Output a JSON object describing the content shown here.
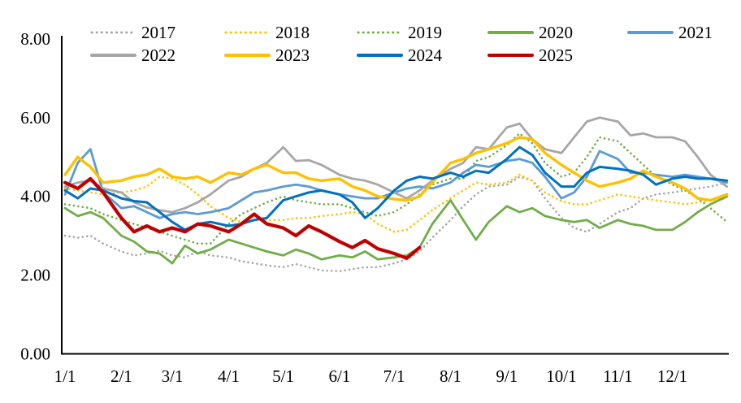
{
  "chart_data": {
    "type": "line",
    "title": "",
    "xlabel": "",
    "ylabel": "",
    "ylim": [
      0,
      8
    ],
    "grid": false,
    "legend_position": "top",
    "x_unit": "day_of_year",
    "x_axis_range_days": [
      0,
      364
    ],
    "y_ticks": [
      "0.00",
      "2.00",
      "4.00",
      "6.00",
      "8.00"
    ],
    "x_ticks": [
      {
        "label": "1/1",
        "day": 0
      },
      {
        "label": "2/1",
        "day": 31
      },
      {
        "label": "3/1",
        "day": 59
      },
      {
        "label": "4/1",
        "day": 90
      },
      {
        "label": "5/1",
        "day": 120
      },
      {
        "label": "6/1",
        "day": 151
      },
      {
        "label": "7/1",
        "day": 181
      },
      {
        "label": "8/1",
        "day": 212
      },
      {
        "label": "9/1",
        "day": 243
      },
      {
        "label": "10/1",
        "day": 273
      },
      {
        "label": "11/1",
        "day": 304
      },
      {
        "label": "12/1",
        "day": 334
      }
    ],
    "x_grid_days": [
      0,
      7,
      14,
      21,
      31,
      38,
      45,
      52,
      59,
      66,
      73,
      80,
      90,
      97,
      104,
      111,
      120,
      127,
      134,
      141,
      151,
      158,
      165,
      172,
      181,
      188,
      195,
      202,
      212,
      219,
      226,
      233,
      243,
      250,
      257,
      264,
      273,
      280,
      287,
      294,
      304,
      311,
      318,
      325,
      334,
      341,
      348,
      355,
      364
    ],
    "legend_rows": [
      [
        "2017",
        "2018",
        "2019",
        "2020",
        "2021"
      ],
      [
        "2022",
        "2023",
        "2024",
        "2025"
      ]
    ],
    "series": [
      {
        "name": "2017",
        "color": "#a6a6a6",
        "style": "dotted",
        "width": 2.6,
        "values": [
          3.0,
          2.95,
          3.0,
          2.8,
          2.6,
          2.5,
          2.55,
          2.62,
          2.5,
          2.45,
          2.6,
          2.5,
          2.45,
          2.35,
          2.3,
          2.25,
          2.2,
          2.28,
          2.2,
          2.12,
          2.1,
          2.15,
          2.2,
          2.2,
          2.3,
          2.4,
          2.6,
          2.95,
          3.4,
          3.75,
          4.05,
          4.25,
          4.3,
          4.5,
          4.4,
          3.95,
          3.45,
          3.2,
          3.1,
          3.3,
          3.6,
          3.7,
          3.95,
          4.05,
          4.1,
          4.15,
          4.2,
          4.25,
          4.35
        ]
      },
      {
        "name": "2018",
        "color": "#ffc000",
        "style": "dotted",
        "width": 2.6,
        "values": [
          4.2,
          4.15,
          4.1,
          4.05,
          4.1,
          4.15,
          4.25,
          4.5,
          4.45,
          4.3,
          4.05,
          3.75,
          3.45,
          3.35,
          3.4,
          3.4,
          3.4,
          3.45,
          3.45,
          3.5,
          3.55,
          3.6,
          3.55,
          3.3,
          3.1,
          3.15,
          3.4,
          3.65,
          3.95,
          4.15,
          4.35,
          4.3,
          4.35,
          4.55,
          4.4,
          4.1,
          3.88,
          3.8,
          3.8,
          3.9,
          4.05,
          4.0,
          3.95,
          3.9,
          3.85,
          3.8,
          3.85,
          3.9,
          3.95
        ]
      },
      {
        "name": "2019",
        "color": "#70ad47",
        "style": "dotted",
        "width": 2.6,
        "values": [
          3.8,
          3.75,
          3.7,
          3.55,
          3.4,
          3.3,
          3.2,
          3.1,
          3.0,
          2.9,
          2.8,
          2.8,
          3.3,
          3.55,
          3.7,
          3.85,
          4.0,
          3.9,
          3.85,
          3.8,
          3.8,
          3.7,
          3.6,
          3.5,
          3.6,
          3.8,
          4.05,
          4.3,
          4.45,
          4.45,
          4.9,
          5.0,
          5.3,
          5.6,
          5.35,
          4.85,
          4.5,
          4.6,
          5.0,
          5.5,
          5.4,
          5.1,
          4.8,
          4.5,
          4.3,
          4.15,
          3.95,
          3.7,
          3.35
        ]
      },
      {
        "name": "2020",
        "color": "#70ad47",
        "style": "solid",
        "width": 2.8,
        "values": [
          3.7,
          3.5,
          3.6,
          3.45,
          3.0,
          2.85,
          2.6,
          2.55,
          2.3,
          2.75,
          2.55,
          2.65,
          2.9,
          2.8,
          2.7,
          2.6,
          2.5,
          2.65,
          2.55,
          2.4,
          2.5,
          2.45,
          2.6,
          2.4,
          2.45,
          2.5,
          2.7,
          3.3,
          3.9,
          3.4,
          2.9,
          3.35,
          3.75,
          3.6,
          3.7,
          3.5,
          3.4,
          3.35,
          3.4,
          3.2,
          3.4,
          3.3,
          3.25,
          3.15,
          3.15,
          3.35,
          3.6,
          3.8,
          4.0
        ]
      },
      {
        "name": "2021",
        "color": "#5b9bd5",
        "style": "solid",
        "width": 2.8,
        "values": [
          4.05,
          4.85,
          5.2,
          4.1,
          3.7,
          3.75,
          3.6,
          3.45,
          3.55,
          3.6,
          3.55,
          3.6,
          3.7,
          3.9,
          4.1,
          4.15,
          4.25,
          4.3,
          4.25,
          4.15,
          4.05,
          4.0,
          3.95,
          3.95,
          4.1,
          4.2,
          4.25,
          4.2,
          4.35,
          4.6,
          4.8,
          4.75,
          4.9,
          4.95,
          4.85,
          4.5,
          3.95,
          4.1,
          4.5,
          5.15,
          4.95,
          4.6,
          4.6,
          4.55,
          4.5,
          4.55,
          4.5,
          4.45,
          4.35
        ]
      },
      {
        "name": "2022",
        "color": "#a6a6a6",
        "style": "solid",
        "width": 2.8,
        "values": [
          4.25,
          4.35,
          4.4,
          4.2,
          4.1,
          3.85,
          3.72,
          3.65,
          3.6,
          3.7,
          3.85,
          4.05,
          4.4,
          4.5,
          4.7,
          4.85,
          5.25,
          4.9,
          4.92,
          4.8,
          4.55,
          4.45,
          4.4,
          4.3,
          4.1,
          3.95,
          4.15,
          4.4,
          4.7,
          4.85,
          5.25,
          5.2,
          5.75,
          5.85,
          5.45,
          5.2,
          5.1,
          5.5,
          5.9,
          6.0,
          5.9,
          5.55,
          5.6,
          5.5,
          5.5,
          5.4,
          5.0,
          4.55,
          4.25
        ]
      },
      {
        "name": "2023",
        "color": "#ffc000",
        "style": "solid",
        "width": 3.4,
        "values": [
          4.55,
          5.0,
          4.75,
          4.35,
          4.4,
          4.5,
          4.55,
          4.7,
          4.5,
          4.45,
          4.5,
          4.35,
          4.6,
          4.55,
          4.7,
          4.8,
          4.6,
          4.6,
          4.45,
          4.4,
          4.45,
          4.25,
          4.15,
          4.0,
          3.93,
          3.9,
          4.0,
          4.35,
          4.85,
          4.95,
          5.1,
          5.2,
          5.35,
          5.5,
          5.45,
          5.1,
          4.8,
          4.6,
          4.4,
          4.25,
          4.35,
          4.45,
          4.65,
          4.5,
          4.35,
          4.2,
          3.95,
          3.9,
          4.05
        ]
      },
      {
        "name": "2024",
        "color": "#0070c0",
        "style": "solid",
        "width": 3.0,
        "values": [
          4.15,
          3.95,
          4.2,
          4.15,
          3.95,
          3.88,
          3.85,
          3.6,
          3.35,
          3.15,
          3.3,
          3.35,
          3.25,
          3.3,
          3.4,
          3.45,
          3.9,
          4.0,
          4.1,
          4.15,
          4.05,
          3.85,
          3.45,
          3.7,
          4.15,
          4.4,
          4.5,
          4.45,
          4.6,
          4.5,
          4.65,
          4.6,
          4.95,
          5.25,
          5.05,
          4.6,
          4.25,
          4.25,
          4.6,
          4.75,
          4.7,
          4.65,
          4.55,
          4.3,
          4.45,
          4.5,
          4.45,
          4.45,
          4.4
        ]
      },
      {
        "name": "2025",
        "color": "#c00000",
        "style": "solid",
        "width": 4.2,
        "values": [
          4.35,
          4.2,
          4.45,
          4.1,
          3.45,
          3.1,
          3.25,
          3.1,
          3.2,
          3.1,
          3.3,
          3.25,
          3.1,
          3.3,
          3.55,
          3.3,
          3.2,
          3.0,
          3.25,
          3.1,
          2.85,
          2.7,
          2.88,
          2.67,
          2.55,
          2.43,
          2.7,
          null,
          null,
          null,
          null,
          null,
          null,
          null,
          null,
          null,
          null,
          null,
          null,
          null,
          null,
          null,
          null,
          null,
          null,
          null,
          null,
          null,
          null
        ]
      }
    ]
  }
}
